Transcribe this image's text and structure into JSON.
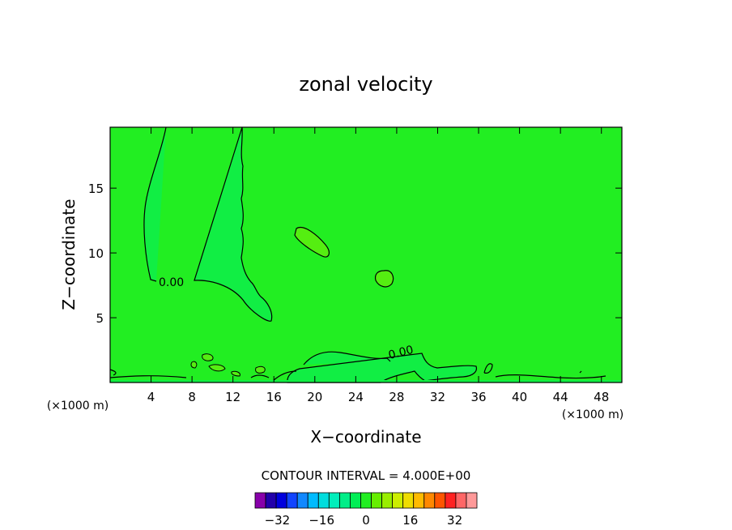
{
  "chart_data": {
    "type": "heatmap",
    "title": "zonal velocity",
    "xlabel": "X−coordinate",
    "ylabel": "Z−coordinate",
    "x_unit_left": "(×1000 m)",
    "x_unit_right": "(×1000 m)",
    "xlim": [
      0,
      50
    ],
    "ylim": [
      0,
      19.7
    ],
    "x_ticks": [
      4,
      8,
      12,
      16,
      20,
      24,
      28,
      32,
      36,
      40,
      44,
      48
    ],
    "y_ticks": [
      5,
      10,
      15
    ],
    "contour_interval_text": "CONTOUR INTERVAL = 4.000E+00",
    "contour_labels": [
      {
        "text": "0.00",
        "x": 6.3,
        "y": 7.9
      },
      {
        "text": "0.00",
        "x": 28.5,
        "y": 2.2
      }
    ],
    "background_value_color": "#22ee22",
    "colorbar": {
      "levels": [
        -40,
        -36,
        -32,
        -28,
        -24,
        -20,
        -16,
        -12,
        -8,
        -4,
        0,
        4,
        8,
        12,
        16,
        20,
        24,
        28,
        32,
        36,
        40
      ],
      "colors": [
        "#8800aa",
        "#2200aa",
        "#0000dd",
        "#1144ff",
        "#1188ff",
        "#00bbff",
        "#00dddd",
        "#00eebb",
        "#00ee88",
        "#00ee55",
        "#22ee22",
        "#66ee00",
        "#99ee00",
        "#ccee00",
        "#eedd00",
        "#ffbb00",
        "#ff8800",
        "#ff5500",
        "#ff2222",
        "#ff6666",
        "#ff9999"
      ],
      "tick_labels": [
        "−32",
        "−16",
        "0",
        "16",
        "32"
      ],
      "tick_values": [
        -32,
        -16,
        0,
        16,
        32
      ]
    }
  }
}
